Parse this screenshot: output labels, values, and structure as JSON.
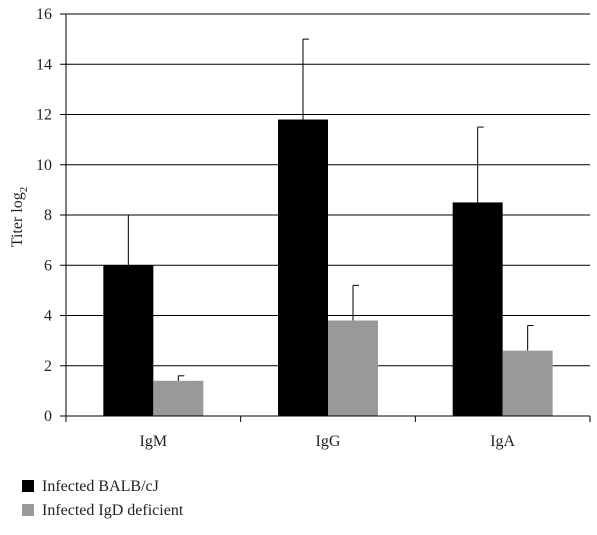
{
  "chart_data": {
    "type": "bar",
    "categories": [
      "IgM",
      "IgG",
      "IgA"
    ],
    "series": [
      {
        "name": "Infected BALB/cJ",
        "values": [
          6.0,
          11.8,
          8.5
        ],
        "errors": [
          2.0,
          3.2,
          3.0
        ],
        "color": "#000000"
      },
      {
        "name": "Infected IgD deficient",
        "values": [
          1.4,
          3.8,
          2.6
        ],
        "errors": [
          0.2,
          1.4,
          1.0
        ],
        "color": "#999999"
      }
    ],
    "ylabel": {
      "main": "Titer log",
      "subscript": "2"
    },
    "ylim": [
      0,
      16
    ],
    "yticks": [
      0,
      2,
      4,
      6,
      8,
      10,
      12,
      14,
      16
    ],
    "grid": true,
    "legend_position": "bottom-left"
  }
}
